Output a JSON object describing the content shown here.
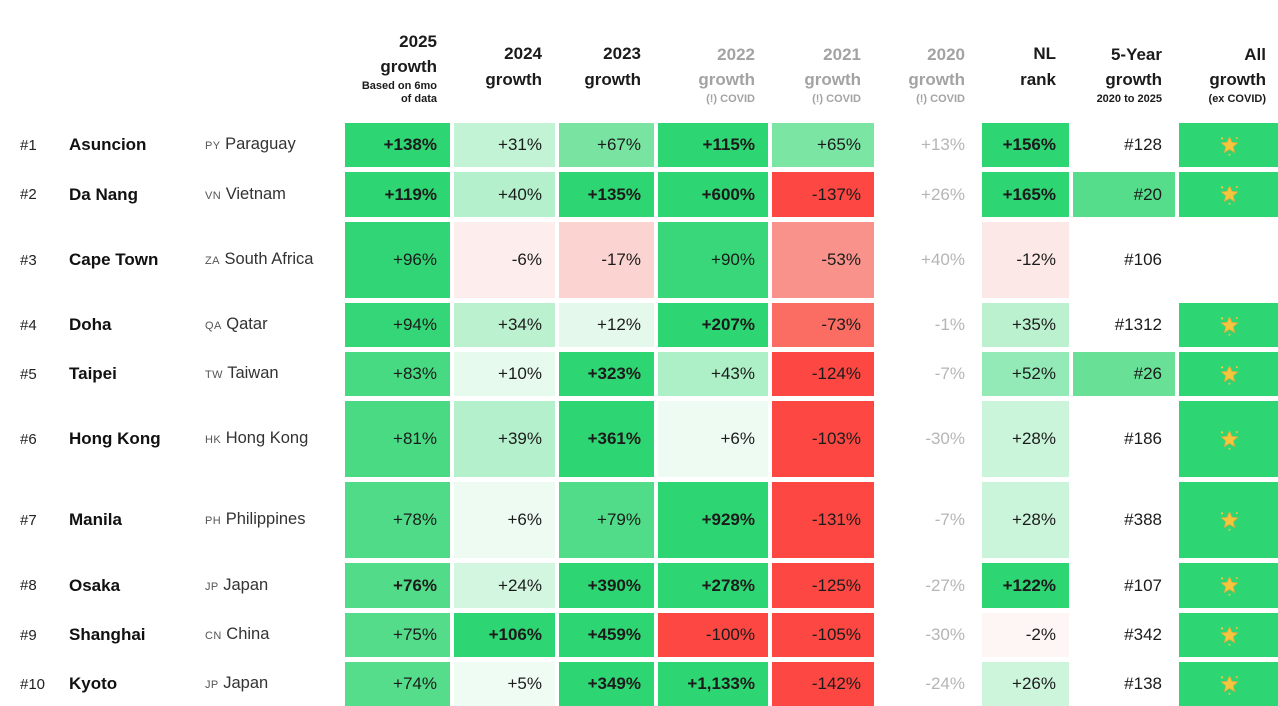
{
  "icons": {
    "all_growth": "glowing-star"
  },
  "header": {
    "columns": [
      {
        "year": "2025",
        "label": "growth",
        "sub": "Based on 6mo of data",
        "muted": false
      },
      {
        "year": "2024",
        "label": "growth",
        "sub": "",
        "muted": false
      },
      {
        "year": "2023",
        "label": "growth",
        "sub": "",
        "muted": false
      },
      {
        "year": "2022",
        "label": "growth",
        "sub": "(!) COVID",
        "muted": true
      },
      {
        "year": "2021",
        "label": "growth",
        "sub": "(!) COVID",
        "muted": true
      },
      {
        "year": "2020",
        "label": "growth",
        "sub": "(!) COVID",
        "muted": true
      },
      {
        "year": "NL",
        "label": "rank",
        "sub": "",
        "muted": false
      },
      {
        "year": "5-Year",
        "label": "growth",
        "sub": "2020 to 2025",
        "muted": false
      },
      {
        "year": "All",
        "label": "growth",
        "sub": "(ex COVID)",
        "muted": false
      }
    ]
  },
  "rows": [
    {
      "rank": "#1",
      "city": "Asuncion",
      "cc": "PY",
      "country": "Paraguay",
      "cells": [
        {
          "text": "+138%",
          "bg": "#2ed573",
          "bold": true
        },
        {
          "text": "+31%",
          "bg": "#c1f3d4"
        },
        {
          "text": "+67%",
          "bg": "#79e4a2"
        },
        {
          "text": "+115%",
          "bg": "#2ed573",
          "bold": true
        },
        {
          "text": "+65%",
          "bg": "#7be5a4"
        },
        {
          "text": "+13%",
          "bg": "",
          "muted": true
        },
        {
          "text": "+156%",
          "bg": "#2ed573",
          "bold": true
        },
        {
          "text": "#128",
          "bg": ""
        },
        {
          "text": "",
          "bg": "#2ed573",
          "sun": true
        }
      ]
    },
    {
      "rank": "#2",
      "city": "Da Nang",
      "cc": "VN",
      "country": "Vietnam",
      "cells": [
        {
          "text": "+119%",
          "bg": "#2ed573",
          "bold": true
        },
        {
          "text": "+40%",
          "bg": "#b3f0cb"
        },
        {
          "text": "+135%",
          "bg": "#2ed573",
          "bold": true
        },
        {
          "text": "+600%",
          "bg": "#2ed573",
          "bold": true
        },
        {
          "text": "-137%",
          "bg": "#fc4742"
        },
        {
          "text": "+26%",
          "bg": "",
          "muted": true
        },
        {
          "text": "+165%",
          "bg": "#2ed573",
          "bold": true
        },
        {
          "text": "#20",
          "bg": "#55dd8b"
        },
        {
          "text": "",
          "bg": "#2ed573",
          "sun": true
        }
      ]
    },
    {
      "rank": "#3",
      "city": "Cape Town",
      "cc": "ZA",
      "country": "South Africa",
      "cells": [
        {
          "text": "+96%",
          "bg": "#31d575"
        },
        {
          "text": "-6%",
          "bg": "#fdeeed"
        },
        {
          "text": "-17%",
          "bg": "#fbd4d2"
        },
        {
          "text": "+90%",
          "bg": "#39d779"
        },
        {
          "text": "-53%",
          "bg": "#f9928b"
        },
        {
          "text": "+40%",
          "bg": "",
          "muted": true
        },
        {
          "text": "-12%",
          "bg": "#fce8e7"
        },
        {
          "text": "#106",
          "bg": ""
        },
        {
          "text": "",
          "bg": ""
        }
      ]
    },
    {
      "rank": "#4",
      "city": "Doha",
      "cc": "QA",
      "country": "Qatar",
      "cells": [
        {
          "text": "+94%",
          "bg": "#35d677"
        },
        {
          "text": "+34%",
          "bg": "#bcf1d0"
        },
        {
          "text": "+12%",
          "bg": "#e4f9ec"
        },
        {
          "text": "+207%",
          "bg": "#2ed573",
          "bold": true
        },
        {
          "text": "-73%",
          "bg": "#fb6d63"
        },
        {
          "text": "-1%",
          "bg": "",
          "muted": true
        },
        {
          "text": "+35%",
          "bg": "#bbf1cf"
        },
        {
          "text": "#1312",
          "bg": ""
        },
        {
          "text": "",
          "bg": "#2ed573",
          "sun": true
        }
      ]
    },
    {
      "rank": "#5",
      "city": "Taipei",
      "cc": "TW",
      "country": "Taiwan",
      "cells": [
        {
          "text": "+83%",
          "bg": "#47da82"
        },
        {
          "text": "+10%",
          "bg": "#e6faee"
        },
        {
          "text": "+323%",
          "bg": "#2ed573",
          "bold": true
        },
        {
          "text": "+43%",
          "bg": "#adefc7"
        },
        {
          "text": "-124%",
          "bg": "#fc4742"
        },
        {
          "text": "-7%",
          "bg": "",
          "muted": true
        },
        {
          "text": "+52%",
          "bg": "#93eab6"
        },
        {
          "text": "#26",
          "bg": "#68e197"
        },
        {
          "text": "",
          "bg": "#2ed573",
          "sun": true
        }
      ]
    },
    {
      "rank": "#6",
      "city": "Hong Kong",
      "cc": "HK",
      "country": "Hong Kong",
      "cells": [
        {
          "text": "+81%",
          "bg": "#4ada84"
        },
        {
          "text": "+39%",
          "bg": "#b5f0cc"
        },
        {
          "text": "+361%",
          "bg": "#2ed573",
          "bold": true
        },
        {
          "text": "+6%",
          "bg": "#edfbf2"
        },
        {
          "text": "-103%",
          "bg": "#fc4742"
        },
        {
          "text": "-30%",
          "bg": "",
          "muted": true
        },
        {
          "text": "+28%",
          "bg": "#caf5da"
        },
        {
          "text": "#186",
          "bg": ""
        },
        {
          "text": "",
          "bg": "#2ed573",
          "sun": true
        }
      ]
    },
    {
      "rank": "#7",
      "city": "Manila",
      "cc": "PH",
      "country": "Philippines",
      "cells": [
        {
          "text": "+78%",
          "bg": "#4fdb87"
        },
        {
          "text": "+6%",
          "bg": "#edfbf2"
        },
        {
          "text": "+79%",
          "bg": "#50dc88"
        },
        {
          "text": "+929%",
          "bg": "#2ed573",
          "bold": true
        },
        {
          "text": "-131%",
          "bg": "#fc4742"
        },
        {
          "text": "-7%",
          "bg": "",
          "muted": true
        },
        {
          "text": "+28%",
          "bg": "#caf5da"
        },
        {
          "text": "#388",
          "bg": ""
        },
        {
          "text": "",
          "bg": "#2ed573",
          "sun": true
        }
      ]
    },
    {
      "rank": "#8",
      "city": "Osaka",
      "cc": "JP",
      "country": "Japan",
      "cells": [
        {
          "text": "+76%",
          "bg": "#52dc89",
          "bold": true
        },
        {
          "text": "+24%",
          "bg": "#d2f6e0"
        },
        {
          "text": "+390%",
          "bg": "#2ed573",
          "bold": true
        },
        {
          "text": "+278%",
          "bg": "#2ed573",
          "bold": true
        },
        {
          "text": "-125%",
          "bg": "#fc4742"
        },
        {
          "text": "-27%",
          "bg": "",
          "muted": true
        },
        {
          "text": "+122%",
          "bg": "#2ed573",
          "bold": true
        },
        {
          "text": "#107",
          "bg": ""
        },
        {
          "text": "",
          "bg": "#2ed573",
          "sun": true
        }
      ]
    },
    {
      "rank": "#9",
      "city": "Shanghai",
      "cc": "CN",
      "country": "China",
      "cells": [
        {
          "text": "+75%",
          "bg": "#54dc8a"
        },
        {
          "text": "+106%",
          "bg": "#2ed573",
          "bold": true
        },
        {
          "text": "+459%",
          "bg": "#2ed573",
          "bold": true
        },
        {
          "text": "-100%",
          "bg": "#fc4742"
        },
        {
          "text": "-105%",
          "bg": "#fc4742"
        },
        {
          "text": "-30%",
          "bg": "",
          "muted": true
        },
        {
          "text": "-2%",
          "bg": "#fef6f5"
        },
        {
          "text": "#342",
          "bg": ""
        },
        {
          "text": "",
          "bg": "#2ed573",
          "sun": true
        }
      ]
    },
    {
      "rank": "#10",
      "city": "Kyoto",
      "cc": "JP",
      "country": "Japan",
      "cells": [
        {
          "text": "+74%",
          "bg": "#56dd8b"
        },
        {
          "text": "+5%",
          "bg": "#effcf3"
        },
        {
          "text": "+349%",
          "bg": "#2ed573",
          "bold": true
        },
        {
          "text": "+1,133%",
          "bg": "#2ed573",
          "bold": true
        },
        {
          "text": "-142%",
          "bg": "#fc4742"
        },
        {
          "text": "-24%",
          "bg": "",
          "muted": true
        },
        {
          "text": "+26%",
          "bg": "#cdf5dc"
        },
        {
          "text": "#138",
          "bg": ""
        },
        {
          "text": "",
          "bg": "#2ed573",
          "sun": true
        }
      ]
    }
  ]
}
